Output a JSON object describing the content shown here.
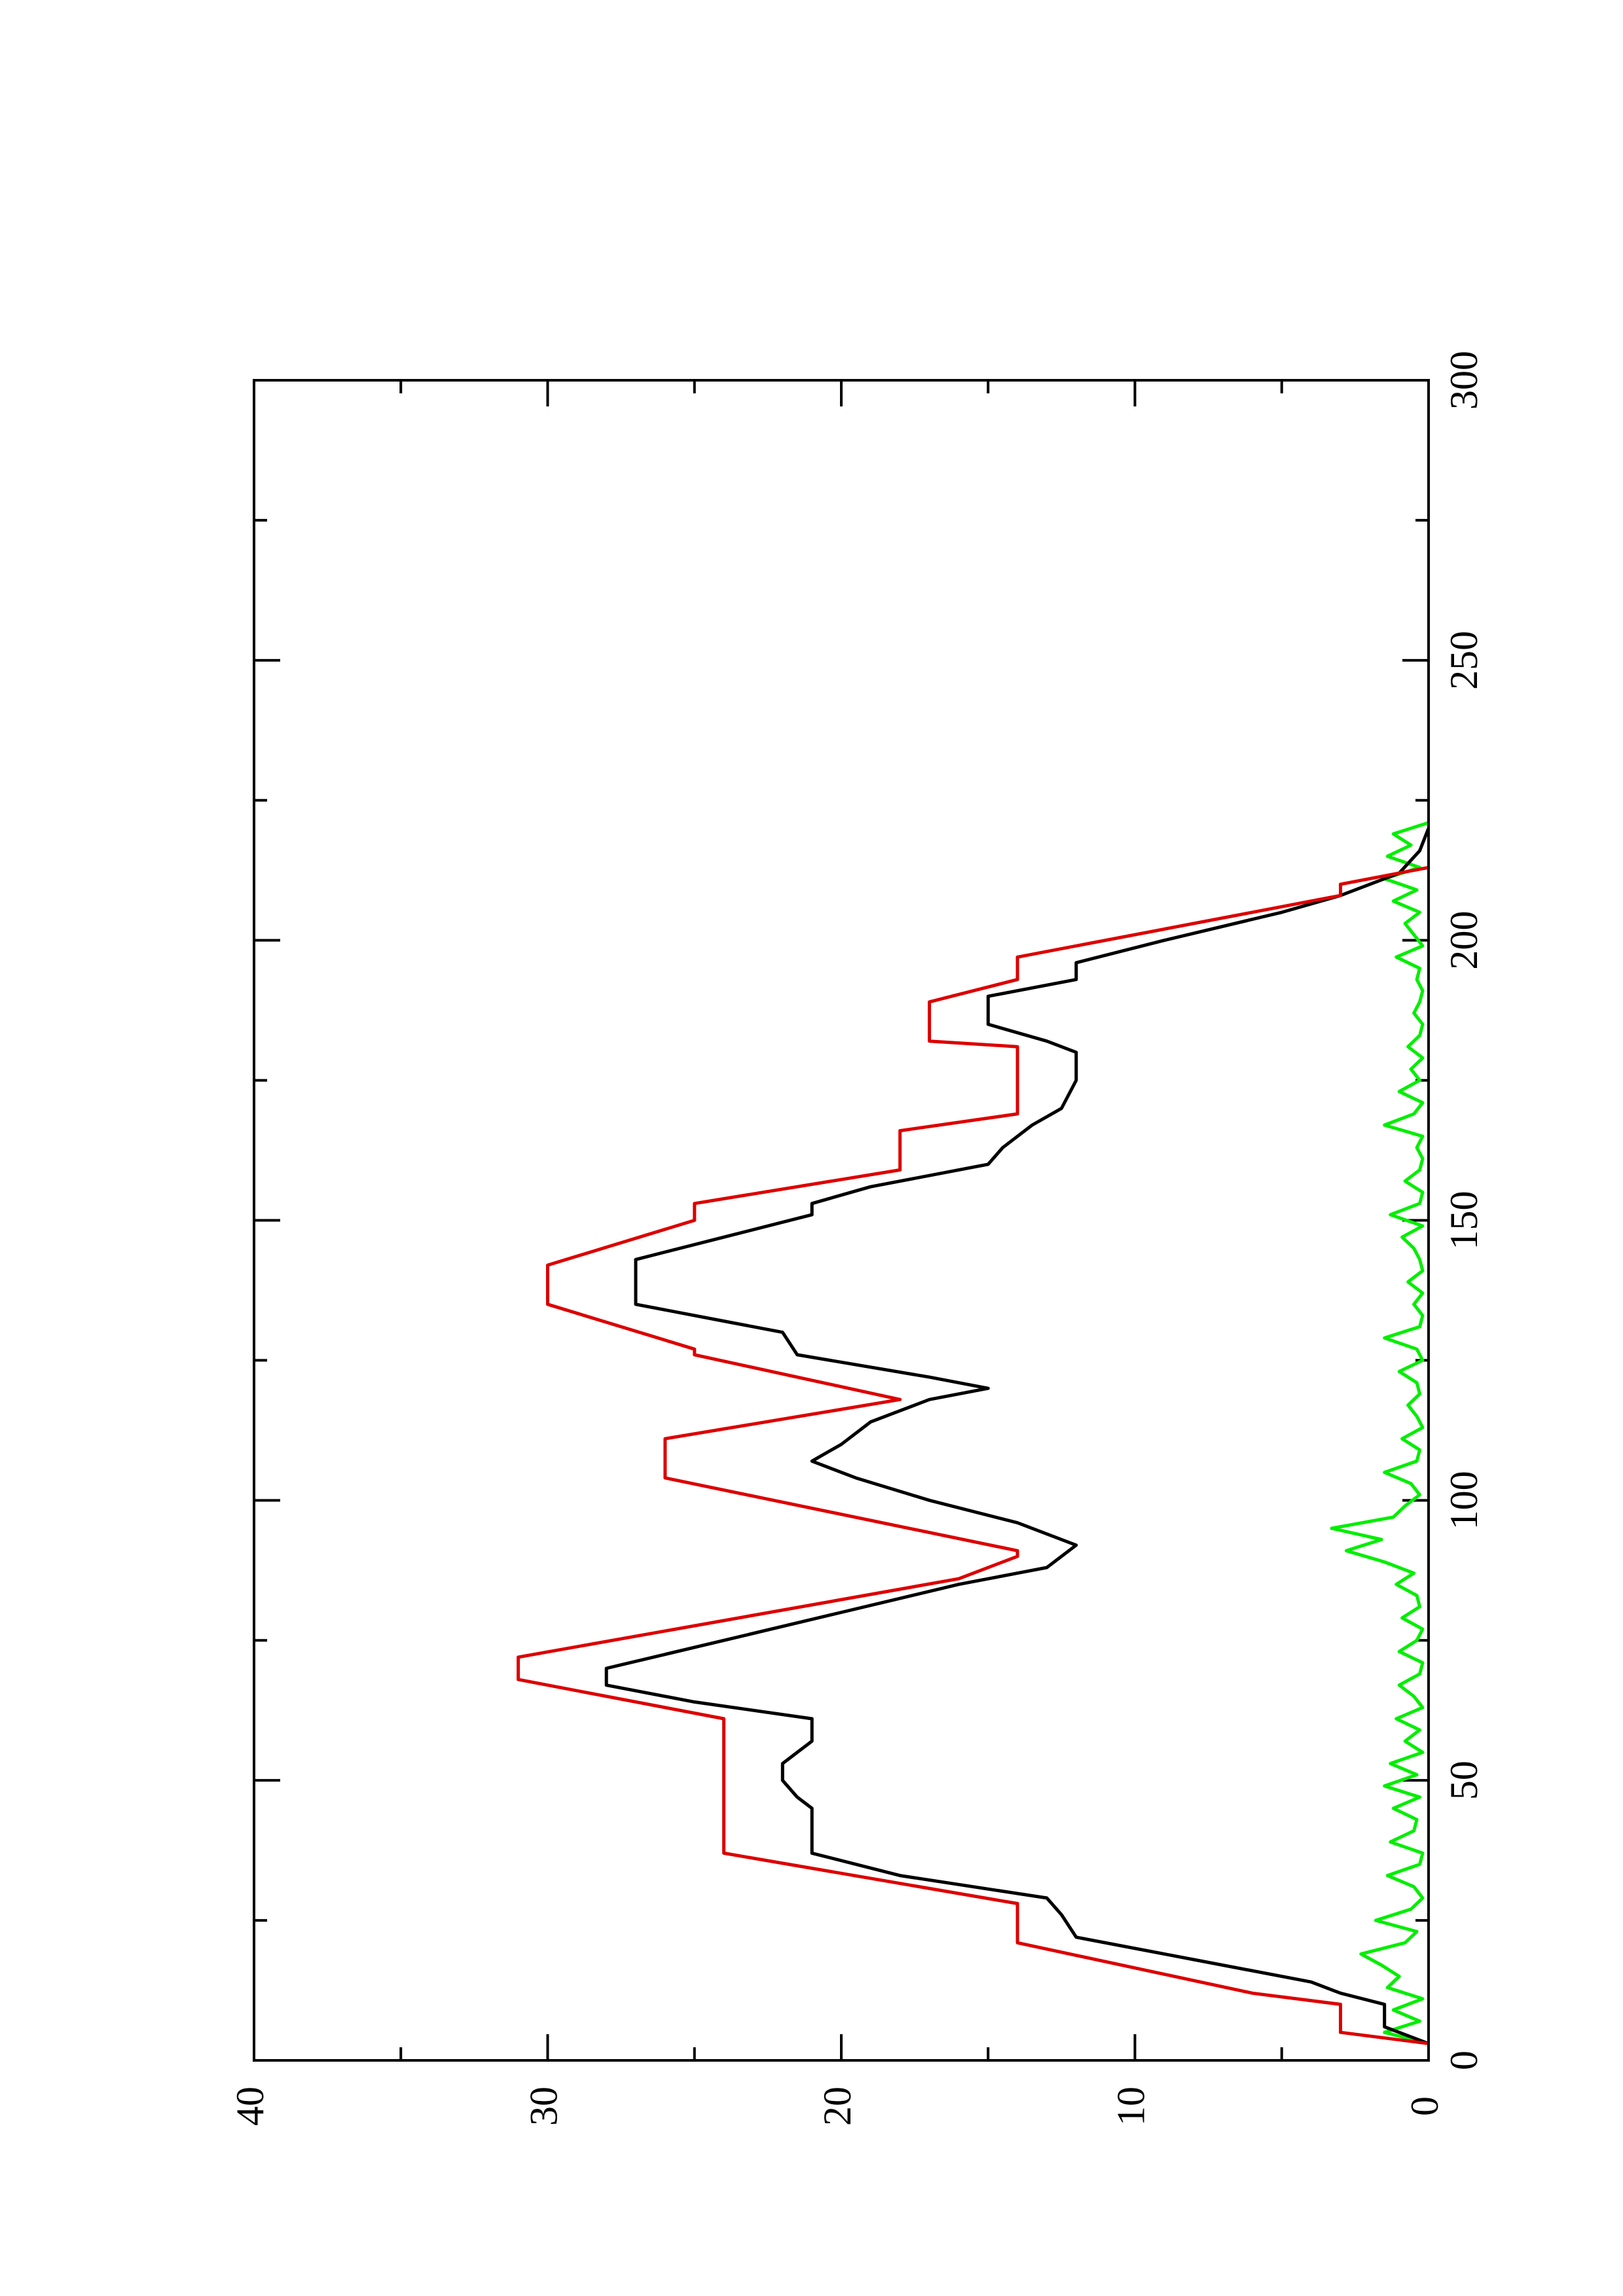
{
  "chart_data": {
    "type": "line",
    "xlim": [
      0,
      300
    ],
    "xticks": [
      0,
      50,
      100,
      150,
      200,
      250,
      300
    ],
    "xticks_minor": [
      25,
      75,
      125,
      175,
      225,
      275
    ],
    "ylim": [
      0,
      40
    ],
    "yticks": [
      0,
      10,
      20,
      30,
      40
    ],
    "yticks_minor": [
      5,
      15,
      25,
      35
    ],
    "rotated": true,
    "series": [
      {
        "color": "#00ee00",
        "x": [
          3,
          5,
          7,
          9,
          11,
          13,
          15,
          17,
          19,
          21,
          23,
          25,
          27,
          29,
          31,
          33,
          35,
          37,
          39,
          41,
          43,
          45,
          47,
          49,
          51,
          53,
          55,
          57,
          59,
          61,
          63,
          65,
          67,
          69,
          71,
          73,
          75,
          77,
          79,
          81,
          83,
          85,
          87,
          89,
          91,
          93,
          95,
          97,
          99,
          101,
          103,
          105,
          107,
          109,
          111,
          113,
          115,
          117,
          119,
          121,
          123,
          125,
          127,
          129,
          131,
          133,
          135,
          137,
          139,
          141,
          143,
          145,
          147,
          149,
          151,
          153,
          155,
          157,
          159,
          161,
          163,
          165,
          167,
          169,
          171,
          173,
          175,
          177,
          179,
          181,
          183,
          185,
          187,
          189,
          191,
          193,
          195,
          197,
          199,
          201,
          203,
          205,
          207,
          209,
          211,
          213,
          215,
          217,
          219,
          221
        ],
        "values": [
          0,
          1.5,
          0.3,
          1.2,
          0.2,
          1.4,
          1.0,
          1.6,
          2.3,
          0.8,
          0.4,
          1.8,
          0.6,
          0.2,
          0.5,
          1.4,
          0.3,
          0.2,
          1.3,
          0.5,
          0.4,
          1.2,
          0.3,
          1.5,
          0.4,
          1.3,
          0.2,
          0.8,
          0.3,
          1.1,
          0.2,
          0.5,
          1.0,
          0.3,
          0.2,
          1.0,
          0.4,
          0.2,
          0.9,
          0.3,
          0.4,
          1.1,
          0.5,
          1.5,
          2.8,
          1.6,
          3.3,
          1.2,
          0.8,
          0.3,
          0.6,
          1.5,
          0.4,
          0.3,
          0.9,
          0.2,
          0.4,
          0.7,
          0.3,
          0.4,
          1.0,
          0.2,
          0.4,
          1.5,
          0.3,
          0.2,
          0.5,
          0.2,
          0.7,
          0.2,
          0.3,
          0.5,
          0.9,
          0.2,
          1.3,
          0.3,
          0.2,
          0.8,
          0.3,
          0.2,
          0.4,
          0.2,
          1.5,
          0.5,
          0.2,
          1.0,
          0.3,
          0.6,
          0.2,
          0.7,
          0.3,
          0.2,
          0.5,
          0.3,
          0.2,
          0.4,
          0.3,
          1.1,
          0.2,
          0.5,
          0.8,
          0.3,
          1.2,
          0.4,
          1.5,
          0.3,
          1.4,
          0.6,
          1.2,
          0
        ]
      },
      {
        "color": "#000000",
        "x": [
          3,
          6,
          10,
          12,
          14,
          18,
          22,
          26,
          29,
          33,
          37,
          45,
          47,
          50,
          53,
          55,
          57,
          61,
          64,
          67,
          70,
          75,
          80,
          85,
          87,
          88,
          90,
          92,
          94,
          96,
          100,
          104,
          107,
          110,
          114,
          118,
          120,
          122,
          126,
          130,
          132,
          135,
          143,
          147,
          151,
          153,
          156,
          160,
          163,
          167,
          170,
          175,
          180,
          182,
          185,
          190,
          193,
          196,
          200,
          205,
          208,
          212,
          216,
          220
        ],
        "values": [
          0,
          1.5,
          1.5,
          3,
          4,
          8,
          12,
          12.5,
          13,
          18,
          21,
          21,
          21.5,
          22,
          22,
          21.5,
          21,
          21,
          25,
          28,
          28,
          24,
          20,
          16,
          14,
          13,
          12.5,
          12,
          13,
          14,
          17,
          19.5,
          21,
          20,
          19,
          17,
          15,
          17,
          21.5,
          22,
          24,
          27,
          27,
          24,
          21,
          21,
          19,
          15,
          14.5,
          13.5,
          12.5,
          12,
          12,
          13,
          15,
          15,
          12,
          12,
          9,
          5,
          3,
          1,
          0.3,
          0
        ]
      },
      {
        "color": "#dd0000",
        "x": [
          3,
          5,
          10,
          12,
          21,
          28,
          37,
          61,
          68,
          72,
          86,
          90,
          91,
          104,
          111,
          118,
          126,
          127,
          135,
          142,
          150,
          153,
          159,
          166,
          169,
          181,
          182,
          189,
          193,
          197,
          208,
          210,
          213
        ],
        "values": [
          0,
          3,
          3,
          6,
          14,
          14,
          24,
          24,
          31,
          31,
          16,
          14,
          14,
          26,
          26,
          18,
          25,
          25,
          30,
          30,
          25,
          25,
          18,
          18,
          14,
          14,
          17,
          17,
          14,
          14,
          3,
          3,
          0
        ]
      }
    ]
  }
}
